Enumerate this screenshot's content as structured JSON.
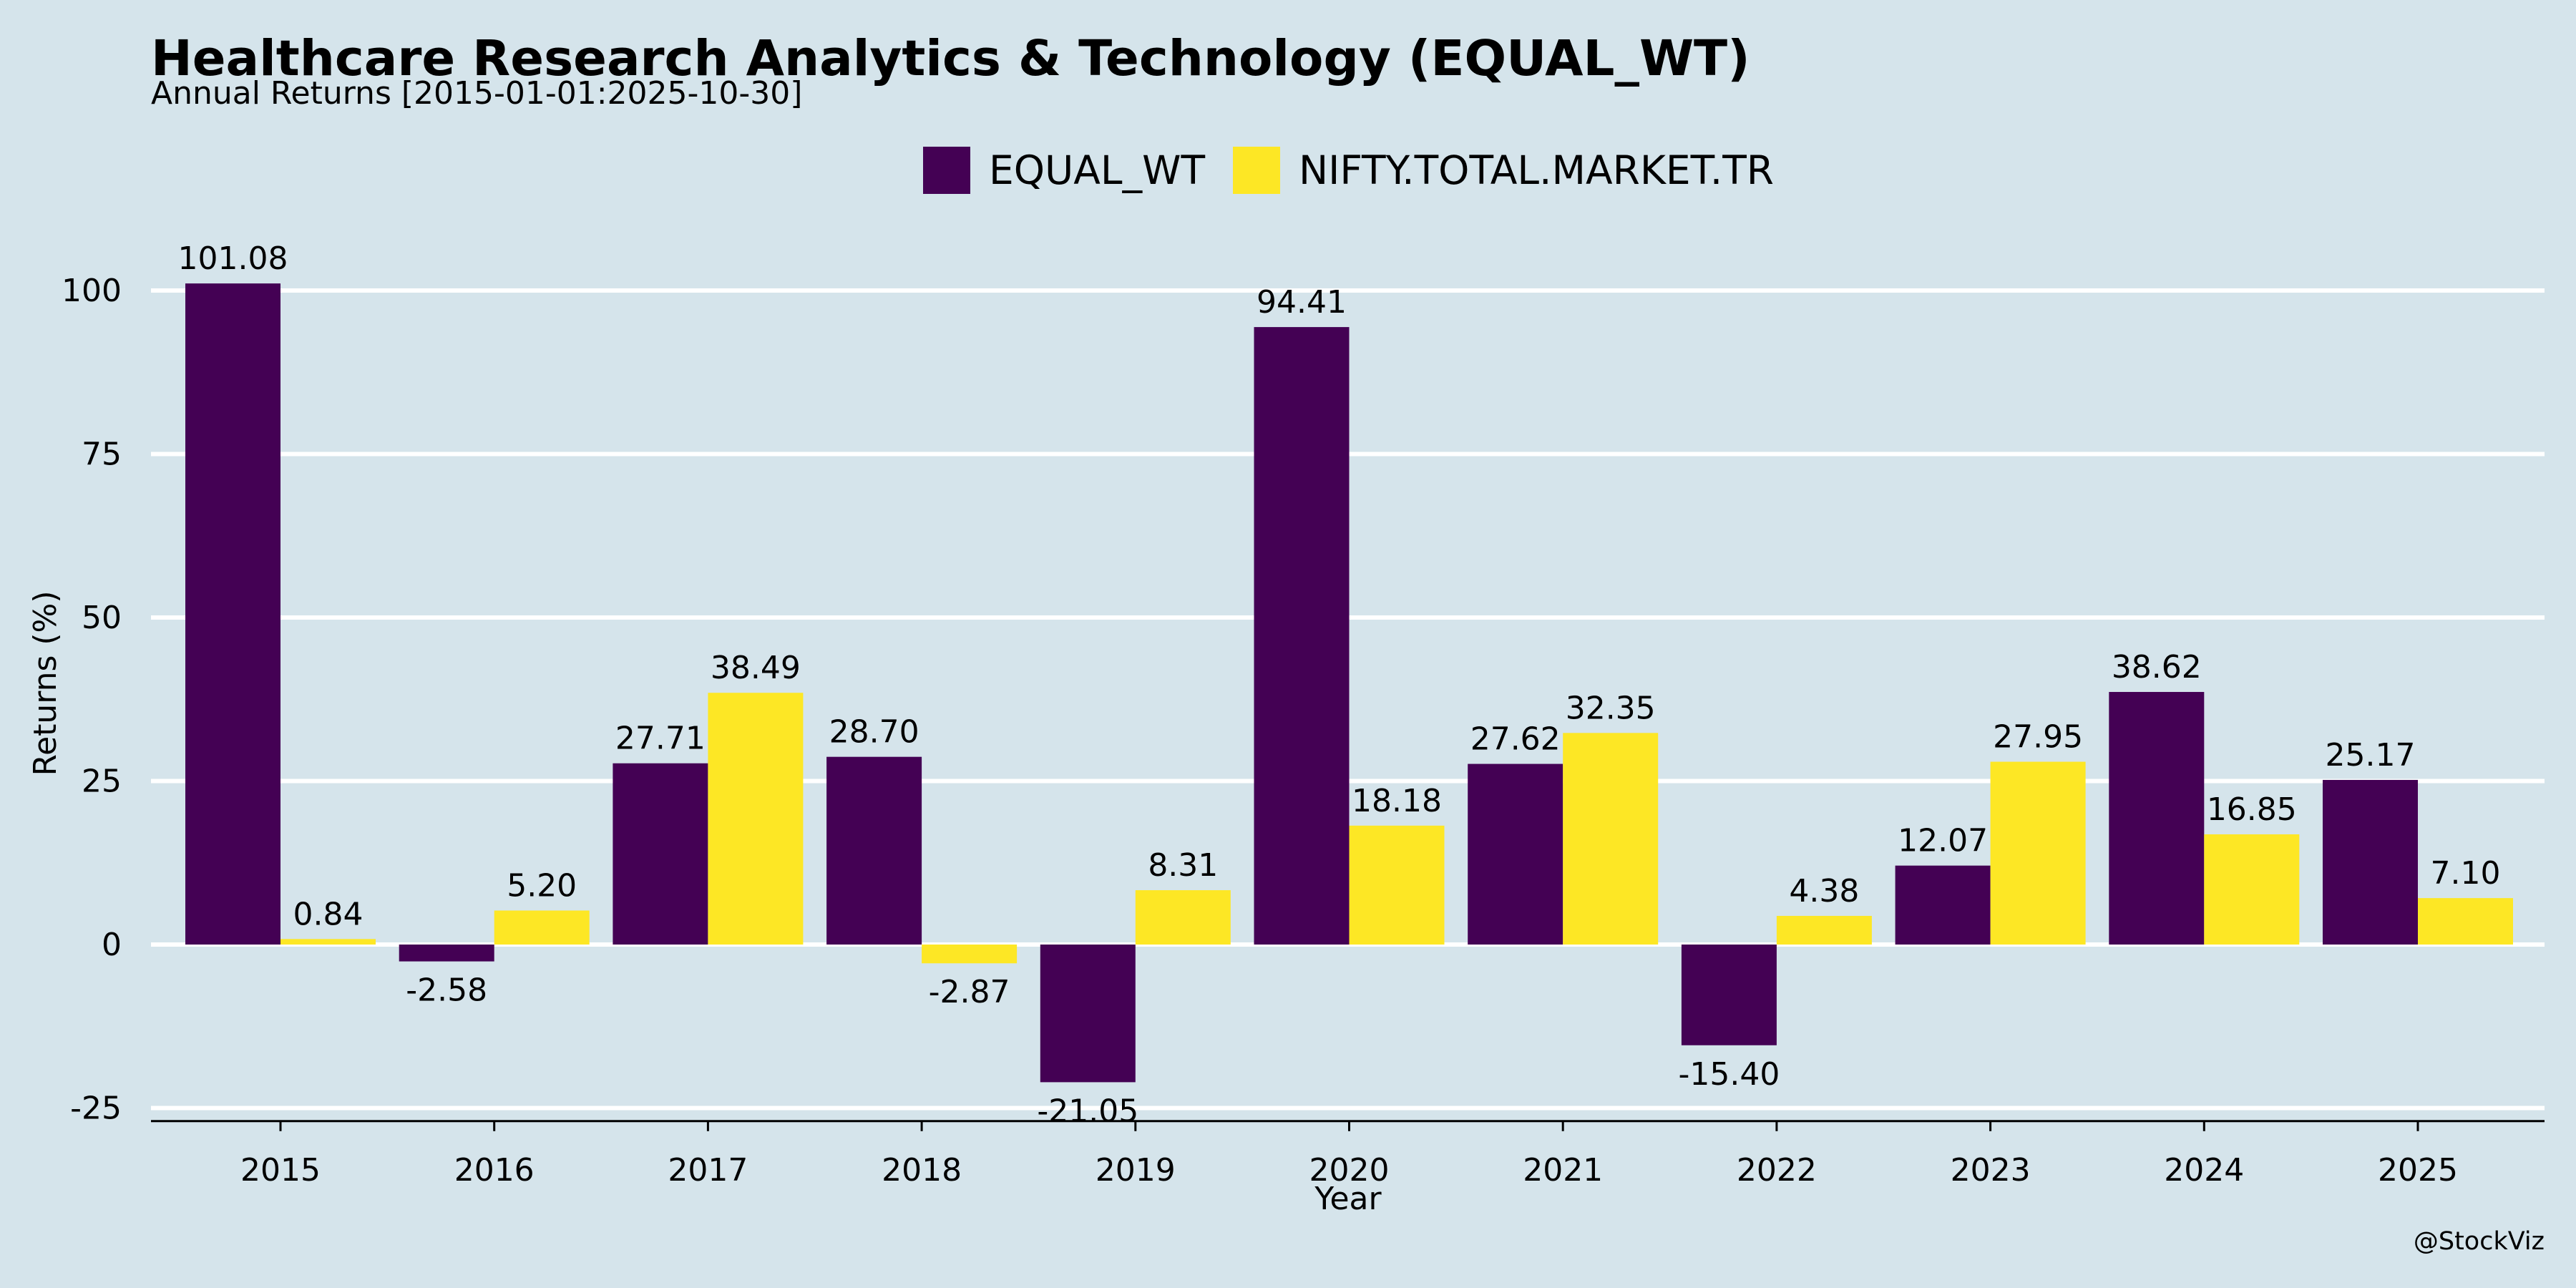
{
  "chart_data": {
    "type": "bar",
    "title": "Healthcare Research Analytics & Technology (EQUAL_WT)",
    "subtitle": "Annual Returns [2015-01-01:2025-10-30]",
    "xlabel": "Year",
    "ylabel": "Returns (%)",
    "categories": [
      "2015",
      "2016",
      "2017",
      "2018",
      "2019",
      "2020",
      "2021",
      "2022",
      "2023",
      "2024",
      "2025"
    ],
    "series": [
      {
        "name": "EQUAL_WT",
        "color": "#440154",
        "values": [
          101.08,
          -2.58,
          27.71,
          28.7,
          -21.05,
          94.41,
          27.62,
          -15.4,
          12.07,
          38.62,
          25.17
        ],
        "labels": [
          "101.08",
          "-2.58",
          "27.71",
          "28.70",
          "-21.05",
          "94.41",
          "27.62",
          "-15.40",
          "12.07",
          "38.62",
          "25.17"
        ]
      },
      {
        "name": "NIFTY.TOTAL.MARKET.TR",
        "color": "#fde725",
        "values": [
          0.84,
          5.2,
          38.49,
          -2.87,
          8.31,
          18.18,
          32.35,
          4.38,
          27.95,
          16.85,
          7.1
        ],
        "labels": [
          "0.84",
          "5.20",
          "38.49",
          "-2.87",
          "8.31",
          "18.18",
          "32.35",
          "4.38",
          "27.95",
          "16.85",
          "7.10"
        ]
      }
    ],
    "yticks": [
      -25,
      0,
      25,
      50,
      75,
      100
    ],
    "ylim": [
      -27,
      107
    ],
    "grid": true,
    "legend_position": "top-center"
  },
  "credit": "@StockViz"
}
